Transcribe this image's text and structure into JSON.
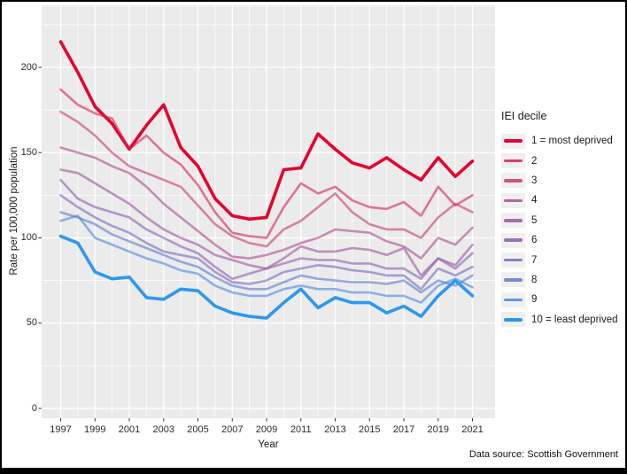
{
  "frame": {
    "caption": "Data source: Scottish Government"
  },
  "chart_data": {
    "type": "line",
    "title": "",
    "xlabel": "Year",
    "ylabel": "Rate per 100,000 population",
    "x": [
      1997,
      1998,
      1999,
      2000,
      2001,
      2002,
      2003,
      2004,
      2005,
      2006,
      2007,
      2008,
      2009,
      2010,
      2011,
      2012,
      2013,
      2014,
      2015,
      2016,
      2017,
      2018,
      2019,
      2020,
      2021
    ],
    "x_ticks": [
      1997,
      1999,
      2001,
      2003,
      2005,
      2007,
      2009,
      2011,
      2013,
      2015,
      2017,
      2019,
      2021
    ],
    "y_ticks": [
      0,
      50,
      100,
      150,
      200
    ],
    "ylim": [
      0,
      236
    ],
    "xlim": [
      1996,
      2022.2
    ],
    "grid": "on",
    "panel_bg": "#ebebeb",
    "grid_color": "#ffffff",
    "legend": {
      "title": "IEI decile",
      "position": "right"
    },
    "series": [
      {
        "name": "1 = most deprived",
        "color": "#e4032f",
        "width": 3.6,
        "opacity": 1,
        "values": [
          215,
          197,
          177,
          167,
          152,
          166,
          178,
          153,
          142,
          123,
          113,
          111,
          112,
          140,
          141,
          161,
          152,
          144,
          141,
          147,
          140,
          134,
          147,
          136,
          145
        ]
      },
      {
        "name": "2",
        "color": "#d62155",
        "width": 2.6,
        "opacity": 0.6,
        "values": [
          187,
          178,
          173,
          170,
          152,
          160,
          150,
          143,
          131,
          115,
          103,
          101,
          100,
          118,
          132,
          126,
          130,
          122,
          118,
          117,
          121,
          113,
          130,
          119,
          125
        ]
      },
      {
        "name": "3",
        "color": "#c43a71",
        "width": 2.6,
        "opacity": 0.6,
        "values": [
          174,
          168,
          160,
          150,
          142,
          138,
          134,
          130,
          119,
          108,
          101,
          97,
          95,
          105,
          110,
          118,
          126,
          115,
          108,
          105,
          105,
          100,
          112,
          120,
          115
        ]
      },
      {
        "name": "4",
        "color": "#ae4b8d",
        "width": 2.6,
        "opacity": 0.6,
        "values": [
          153,
          150,
          147,
          142,
          138,
          130,
          120,
          112,
          104,
          96,
          89,
          88,
          90,
          93,
          97,
          100,
          105,
          104,
          103,
          98,
          95,
          88,
          100,
          96,
          106
        ]
      },
      {
        "name": "5",
        "color": "#9b539f",
        "width": 2.6,
        "opacity": 0.6,
        "values": [
          140,
          138,
          132,
          126,
          120,
          112,
          105,
          100,
          96,
          90,
          87,
          84,
          82,
          88,
          95,
          92,
          92,
          94,
          93,
          90,
          94,
          78,
          88,
          84,
          96
        ]
      },
      {
        "name": "6",
        "color": "#8a5bb0",
        "width": 2.6,
        "opacity": 0.6,
        "values": [
          134,
          123,
          118,
          115,
          112,
          105,
          100,
          95,
          91,
          83,
          76,
          79,
          82,
          85,
          88,
          87,
          87,
          85,
          85,
          82,
          82,
          76,
          88,
          82,
          91
        ]
      },
      {
        "name": "7",
        "color": "#7568c2",
        "width": 2.6,
        "opacity": 0.6,
        "values": [
          125,
          118,
          112,
          107,
          103,
          97,
          92,
          90,
          88,
          80,
          74,
          73,
          75,
          80,
          82,
          84,
          83,
          81,
          80,
          78,
          78,
          70,
          82,
          78,
          83
        ]
      },
      {
        "name": "8",
        "color": "#5a78ce",
        "width": 2.6,
        "opacity": 0.6,
        "values": [
          115,
          112,
          108,
          102,
          98,
          94,
          90,
          86,
          83,
          77,
          72,
          70,
          70,
          74,
          78,
          76,
          75,
          74,
          74,
          73,
          75,
          68,
          75,
          72,
          78
        ]
      },
      {
        "name": "9",
        "color": "#4787dc",
        "width": 2.6,
        "opacity": 0.6,
        "values": [
          110,
          113,
          100,
          96,
          92,
          88,
          85,
          81,
          79,
          72,
          68,
          66,
          66,
          70,
          72,
          70,
          70,
          68,
          68,
          66,
          66,
          62,
          72,
          76,
          71
        ]
      },
      {
        "name": "10 = least deprived",
        "color": "#2d97f2",
        "width": 3.6,
        "opacity": 1,
        "values": [
          101,
          97,
          80,
          76,
          77,
          65,
          64,
          70,
          69,
          60,
          56,
          54,
          53,
          62,
          70,
          59,
          65,
          62,
          62,
          56,
          60,
          54,
          66,
          75,
          66
        ]
      }
    ]
  }
}
